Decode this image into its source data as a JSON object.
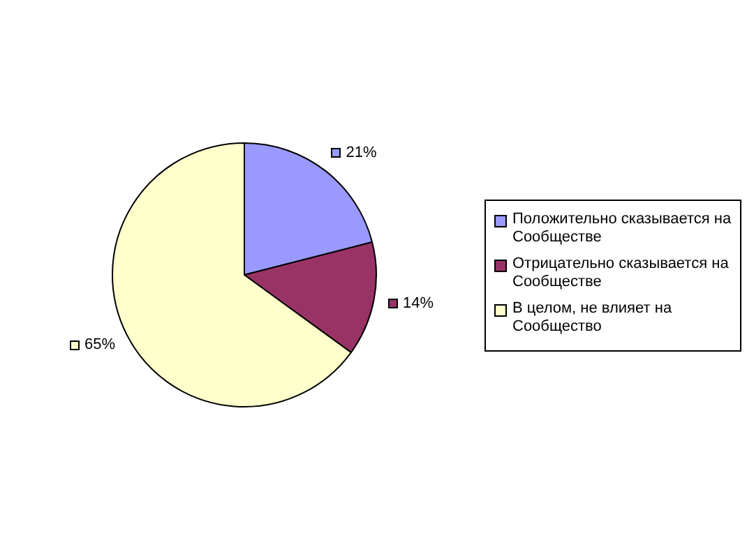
{
  "chart_data": {
    "type": "pie",
    "categories": [
      "Положительно сказывается на Сообществе",
      "Отрицательно сказывается на Сообществе",
      "В целом, не влияет на Сообщество"
    ],
    "values": [
      21,
      14,
      65
    ],
    "colors": [
      "#9999ff",
      "#993366",
      "#ffffcc"
    ],
    "value_labels": [
      "21%",
      "14%",
      "65%"
    ],
    "legend": "right"
  }
}
